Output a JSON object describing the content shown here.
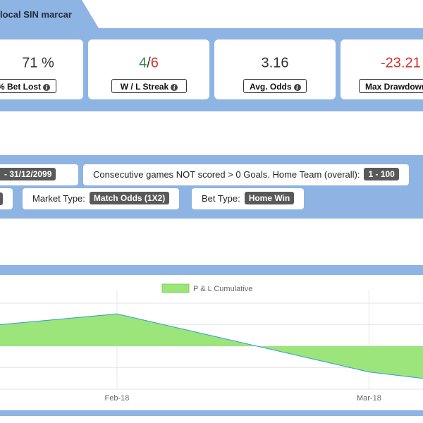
{
  "header": {
    "title": "local SIN marcar"
  },
  "stats": [
    {
      "value": "71 %",
      "label": "% Bet Lost"
    },
    {
      "wins": "4",
      "sep": "/",
      "losses": "6",
      "label": "W / L Streak"
    },
    {
      "value": "3.16",
      "label": "Avg. Odds"
    },
    {
      "value": "-23.21",
      "label": "Max Drawdown"
    }
  ],
  "filters": {
    "date_range": "- 31/12/2099",
    "consecutive_label": "Consecutive games NOT scored > 0 Goals. Home Team (overall):",
    "consecutive_value": "1 - 100",
    "market_label": "Market Type:",
    "market_value": "Match Odds (1X2)",
    "bet_label": "Bet Type:",
    "bet_value": "Home Win"
  },
  "chart_data": {
    "type": "area",
    "series": [
      {
        "name": "P & L Cumulative",
        "color": "#9be57a",
        "line_color": "#2e9bd6",
        "points": [
          {
            "x": "2018-01-19",
            "y": 1.0
          },
          {
            "x": "2018-02-01",
            "y": 1.5
          },
          {
            "x": "2018-03-01",
            "y": -1.2
          },
          {
            "x": "2018-03-07",
            "y": -1.5
          }
        ]
      }
    ],
    "xticks": [
      "Feb-18",
      "Mar-18"
    ],
    "xtick_dates": [
      "2018-02-01",
      "2018-03-01"
    ],
    "xlim": [
      "2018-01-19",
      "2018-03-07"
    ],
    "ylim": [
      -2,
      2
    ],
    "grid": true,
    "legend": "top-center"
  }
}
